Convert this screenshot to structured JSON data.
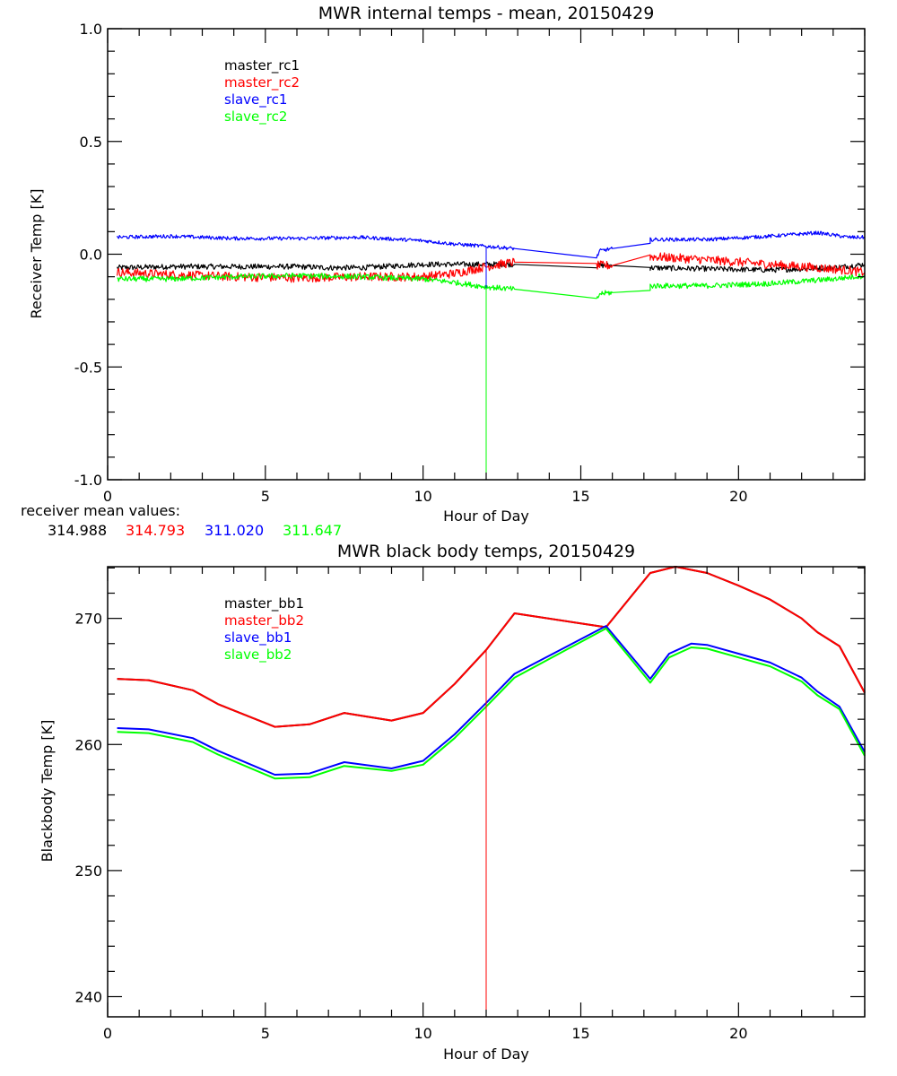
{
  "chart_data": [
    {
      "type": "line",
      "title": "MWR internal temps - mean, 20150429",
      "xlabel": "Hour of Day",
      "ylabel": "Receiver Temp [K]",
      "xlim": [
        0,
        24
      ],
      "ylim": [
        -1.0,
        1.0
      ],
      "x_ticks": [
        0,
        5,
        10,
        15,
        20
      ],
      "x_tick_labels": [
        "0",
        "5",
        "10",
        "15",
        "20"
      ],
      "y_ticks": [
        -1.0,
        -0.5,
        0.0,
        0.5,
        1.0
      ],
      "y_tick_labels": [
        "-1.0",
        "-0.5",
        "0.0",
        "0.5",
        "1.0"
      ],
      "grid": false,
      "legend_position": "top-left",
      "series": [
        {
          "name": "master_rc1",
          "color": "#000000",
          "noise": 0.012,
          "x": [
            0.3,
            2,
            4,
            6,
            7,
            8,
            10,
            12,
            12.9,
            15.5,
            15.6,
            16,
            17.2,
            17.2,
            19,
            21,
            23,
            24
          ],
          "y": [
            -0.06,
            -0.055,
            -0.055,
            -0.055,
            -0.06,
            -0.06,
            -0.045,
            -0.045,
            -0.045,
            -0.05,
            -0.05,
            -0.05,
            -0.06,
            -0.06,
            -0.065,
            -0.07,
            -0.06,
            -0.045
          ]
        },
        {
          "name": "master_rc2",
          "color": "#ff0000",
          "noise": 0.02,
          "x": [
            0.3,
            2,
            4,
            6,
            8,
            10,
            11,
            12,
            12.9,
            15.5,
            15.6,
            16,
            17.2,
            17.2,
            19,
            21,
            23,
            24
          ],
          "y": [
            -0.08,
            -0.09,
            -0.1,
            -0.105,
            -0.1,
            -0.1,
            -0.085,
            -0.055,
            -0.035,
            -0.05,
            -0.05,
            -0.05,
            -0.01,
            -0.01,
            -0.025,
            -0.045,
            -0.065,
            -0.08
          ]
        },
        {
          "name": "slave_rc1",
          "color": "#0000ff",
          "noise": 0.008,
          "x": [
            0.3,
            2,
            4,
            6,
            8,
            10,
            11,
            12,
            12.9,
            15.5,
            15.6,
            16,
            17.2,
            17.2,
            19,
            21,
            22.5,
            23.5,
            24
          ],
          "y": [
            0.075,
            0.08,
            0.07,
            0.07,
            0.075,
            0.06,
            0.045,
            0.035,
            0.025,
            -0.015,
            0.015,
            0.025,
            0.045,
            0.065,
            0.065,
            0.08,
            0.095,
            0.075,
            0.075
          ]
        },
        {
          "name": "slave_rc2",
          "color": "#00ff00",
          "noise": 0.012,
          "x": [
            0.3,
            2,
            4,
            6,
            8,
            10,
            11,
            12,
            12.9,
            15.5,
            15.6,
            16,
            17.2,
            17.2,
            19,
            21,
            23,
            24
          ],
          "y": [
            -0.11,
            -0.11,
            -0.1,
            -0.095,
            -0.1,
            -0.11,
            -0.125,
            -0.145,
            -0.155,
            -0.205,
            -0.175,
            -0.17,
            -0.165,
            -0.14,
            -0.14,
            -0.13,
            -0.11,
            -0.095
          ]
        }
      ],
      "annotations": {
        "spike_hour": 12.0,
        "spike_color_upper": "#0000ff",
        "spike_color_lower": "#00ff00",
        "spike_range": [
          -1.0,
          0.0
        ]
      },
      "footer": {
        "label": "receiver mean values:",
        "values": [
          {
            "text": "314.988",
            "color": "#000000"
          },
          {
            "text": "314.793",
            "color": "#ff0000"
          },
          {
            "text": "311.020",
            "color": "#0000ff"
          },
          {
            "text": "311.647",
            "color": "#00ff00"
          }
        ]
      }
    },
    {
      "type": "line",
      "title": "MWR black body temps, 20150429",
      "xlabel": "Hour of Day",
      "ylabel": "Blackbody Temp [K]",
      "xlim": [
        0,
        24
      ],
      "ylim": [
        238.4,
        274.1
      ],
      "x_ticks": [
        0,
        5,
        10,
        15,
        20
      ],
      "x_tick_labels": [
        "0",
        "5",
        "10",
        "15",
        "20"
      ],
      "y_ticks": [
        240,
        250,
        260,
        270
      ],
      "y_tick_labels": [
        "240",
        "250",
        "260",
        "270"
      ],
      "grid": false,
      "legend_position": "top-left",
      "series": [
        {
          "name": "master_bb1",
          "color": "#000000",
          "x": [
            0.3,
            1.3,
            2.7,
            3.5,
            5.3,
            6.4,
            7.5,
            9.0,
            10.0,
            11.0,
            12.0,
            12.9,
            15.8,
            17.2,
            18.0,
            19.0,
            20.0,
            21.0,
            22.0,
            22.5,
            23.2,
            24.0
          ],
          "y": [
            265.2,
            265.1,
            264.3,
            263.2,
            261.4,
            261.6,
            262.5,
            261.9,
            262.5,
            264.8,
            267.5,
            270.4,
            269.3,
            273.6,
            274.1,
            273.6,
            272.6,
            271.5,
            270.0,
            268.9,
            267.8,
            264.1
          ]
        },
        {
          "name": "master_bb2",
          "color": "#ff0000",
          "x": [
            0.3,
            1.3,
            2.7,
            3.5,
            5.3,
            6.4,
            7.5,
            9.0,
            10.0,
            11.0,
            12.0,
            12.9,
            15.8,
            17.2,
            18.0,
            19.0,
            20.0,
            21.0,
            22.0,
            22.5,
            23.2,
            24.0
          ],
          "y": [
            265.2,
            265.1,
            264.3,
            263.2,
            261.4,
            261.6,
            262.5,
            261.9,
            262.5,
            264.8,
            267.5,
            270.4,
            269.3,
            273.6,
            274.1,
            273.6,
            272.6,
            271.5,
            270.0,
            268.9,
            267.8,
            264.1
          ]
        },
        {
          "name": "slave_bb1",
          "color": "#0000ff",
          "x": [
            0.3,
            1.3,
            2.7,
            3.5,
            5.3,
            6.4,
            7.5,
            9.0,
            10.0,
            11.0,
            12.0,
            12.9,
            15.8,
            17.2,
            17.8,
            18.5,
            19.0,
            20.0,
            21.0,
            22.0,
            22.5,
            23.2,
            24.0
          ],
          "y": [
            261.3,
            261.2,
            260.5,
            259.5,
            257.6,
            257.7,
            258.6,
            258.1,
            258.7,
            260.8,
            263.3,
            265.6,
            269.4,
            265.2,
            267.2,
            268.0,
            267.9,
            267.2,
            266.5,
            265.3,
            264.2,
            263.0,
            259.4
          ]
        },
        {
          "name": "slave_bb2",
          "color": "#00ff00",
          "x": [
            0.3,
            1.3,
            2.7,
            3.5,
            5.3,
            6.4,
            7.5,
            9.0,
            10.0,
            11.0,
            12.0,
            12.9,
            15.8,
            17.2,
            17.8,
            18.5,
            19.0,
            20.0,
            21.0,
            22.0,
            22.5,
            23.2,
            24.0
          ],
          "y": [
            261.0,
            260.9,
            260.2,
            259.2,
            257.3,
            257.4,
            258.3,
            257.9,
            258.4,
            260.5,
            263.0,
            265.3,
            269.2,
            264.9,
            266.9,
            267.7,
            267.6,
            266.9,
            266.2,
            265.0,
            263.9,
            262.8,
            259.1
          ]
        }
      ],
      "annotations": {
        "spike_hour": 12.0,
        "spike_color": "#ff0000",
        "spike_range": [
          238.4,
          267.5
        ]
      }
    }
  ]
}
